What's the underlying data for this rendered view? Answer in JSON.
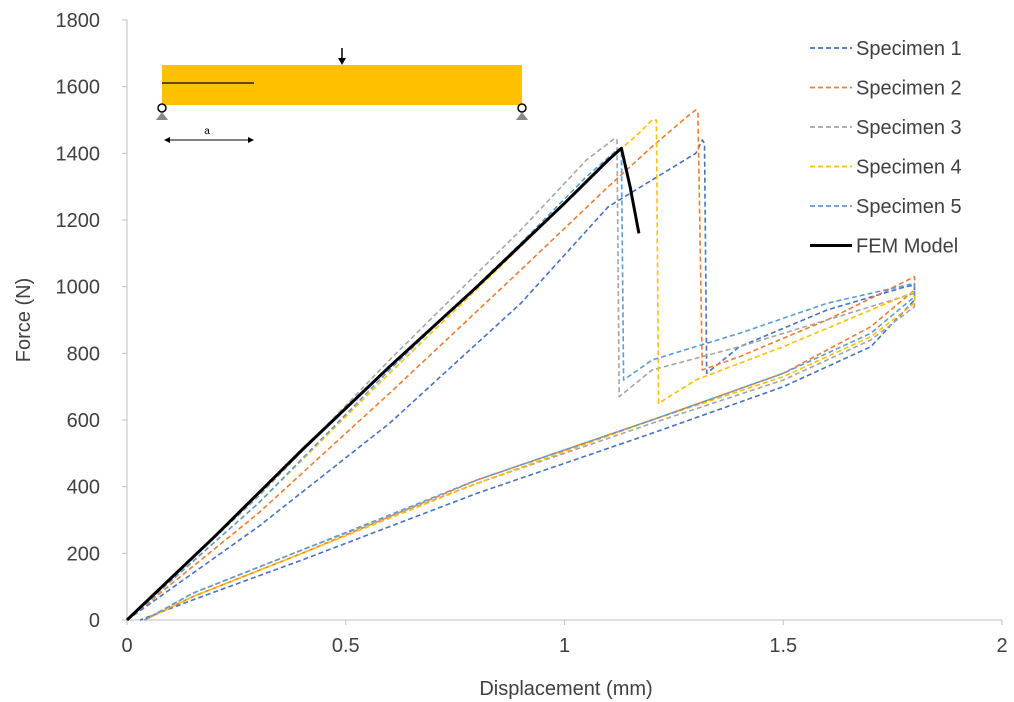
{
  "chart_data": {
    "type": "line",
    "title": "",
    "xlabel": "Displacement (mm)",
    "ylabel": "Force (N)",
    "xlim": [
      0,
      2
    ],
    "ylim": [
      0,
      1800
    ],
    "xticks": [
      "0",
      "0.5",
      "1",
      "1.5",
      "2"
    ],
    "yticks": [
      "0",
      "200",
      "400",
      "600",
      "800",
      "1000",
      "1200",
      "1400",
      "1600",
      "1800"
    ],
    "grid": false,
    "legend_position": "top-right",
    "series": [
      {
        "name": "Specimen 1",
        "color": "#4472C4",
        "dash": "dashed",
        "points": [
          [
            0,
            0
          ],
          [
            0.3,
            280
          ],
          [
            0.6,
            590
          ],
          [
            0.9,
            950
          ],
          [
            1.1,
            1240
          ],
          [
            1.2,
            1320
          ],
          [
            1.3,
            1400
          ],
          [
            1.315,
            1440
          ],
          [
            1.32,
            1430
          ],
          [
            1.325,
            740
          ],
          [
            1.4,
            820
          ],
          [
            1.6,
            930
          ],
          [
            1.78,
            1000
          ],
          [
            1.8,
            1005
          ],
          [
            1.8,
            960
          ],
          [
            1.7,
            820
          ],
          [
            1.5,
            700
          ],
          [
            1.2,
            560
          ],
          [
            0.8,
            380
          ],
          [
            0.4,
            180
          ],
          [
            0.15,
            60
          ],
          [
            0.03,
            0
          ]
        ]
      },
      {
        "name": "Specimen 2",
        "color": "#ED7D31",
        "dash": "dashed",
        "points": [
          [
            0,
            0
          ],
          [
            0.3,
            320
          ],
          [
            0.6,
            680
          ],
          [
            0.9,
            1050
          ],
          [
            1.1,
            1300
          ],
          [
            1.2,
            1420
          ],
          [
            1.28,
            1510
          ],
          [
            1.3,
            1530
          ],
          [
            1.305,
            1525
          ],
          [
            1.315,
            750
          ],
          [
            1.4,
            790
          ],
          [
            1.6,
            900
          ],
          [
            1.8,
            1030
          ],
          [
            1.8,
            990
          ],
          [
            1.7,
            880
          ],
          [
            1.5,
            740
          ],
          [
            1.2,
            600
          ],
          [
            0.8,
            420
          ],
          [
            0.4,
            200
          ],
          [
            0.15,
            70
          ],
          [
            0.04,
            0
          ]
        ]
      },
      {
        "name": "Specimen 3",
        "color": "#A5A5A5",
        "dash": "dashed",
        "points": [
          [
            0,
            0
          ],
          [
            0.3,
            370
          ],
          [
            0.6,
            780
          ],
          [
            0.9,
            1170
          ],
          [
            1.05,
            1380
          ],
          [
            1.1,
            1430
          ],
          [
            1.115,
            1445
          ],
          [
            1.12,
            1440
          ],
          [
            1.125,
            670
          ],
          [
            1.2,
            750
          ],
          [
            1.4,
            820
          ],
          [
            1.6,
            900
          ],
          [
            1.8,
            980
          ],
          [
            1.8,
            940
          ],
          [
            1.7,
            840
          ],
          [
            1.5,
            720
          ],
          [
            1.2,
            590
          ],
          [
            0.8,
            410
          ],
          [
            0.4,
            210
          ],
          [
            0.15,
            80
          ],
          [
            0.04,
            0
          ]
        ]
      },
      {
        "name": "Specimen 4",
        "color": "#FFC000",
        "dash": "dashed",
        "points": [
          [
            0,
            0
          ],
          [
            0.3,
            350
          ],
          [
            0.6,
            740
          ],
          [
            0.9,
            1120
          ],
          [
            1.1,
            1380
          ],
          [
            1.17,
            1460
          ],
          [
            1.2,
            1500
          ],
          [
            1.21,
            1500
          ],
          [
            1.215,
            650
          ],
          [
            1.3,
            720
          ],
          [
            1.5,
            820
          ],
          [
            1.7,
            930
          ],
          [
            1.8,
            985
          ],
          [
            1.8,
            950
          ],
          [
            1.7,
            850
          ],
          [
            1.5,
            730
          ],
          [
            1.2,
            600
          ],
          [
            0.8,
            410
          ],
          [
            0.4,
            200
          ],
          [
            0.15,
            70
          ],
          [
            0.04,
            0
          ]
        ]
      },
      {
        "name": "Specimen 5",
        "color": "#5B9BD5",
        "dash": "dashed",
        "points": [
          [
            0,
            0
          ],
          [
            0.3,
            350
          ],
          [
            0.6,
            750
          ],
          [
            0.9,
            1130
          ],
          [
            1.05,
            1330
          ],
          [
            1.12,
            1410
          ],
          [
            1.13,
            1415
          ],
          [
            1.135,
            720
          ],
          [
            1.2,
            780
          ],
          [
            1.4,
            860
          ],
          [
            1.6,
            950
          ],
          [
            1.8,
            1010
          ],
          [
            1.8,
            970
          ],
          [
            1.7,
            860
          ],
          [
            1.5,
            740
          ],
          [
            1.2,
            600
          ],
          [
            0.8,
            420
          ],
          [
            0.4,
            210
          ],
          [
            0.15,
            80
          ],
          [
            0.04,
            0
          ]
        ]
      },
      {
        "name": "FEM Model",
        "color": "#000000",
        "dash": "solid",
        "points": [
          [
            0,
            0
          ],
          [
            0.2,
            250
          ],
          [
            0.4,
            510
          ],
          [
            0.6,
            760
          ],
          [
            0.8,
            1000
          ],
          [
            1.0,
            1250
          ],
          [
            1.1,
            1380
          ],
          [
            1.13,
            1415
          ],
          [
            1.15,
            1300
          ],
          [
            1.17,
            1160
          ]
        ]
      }
    ]
  }
}
